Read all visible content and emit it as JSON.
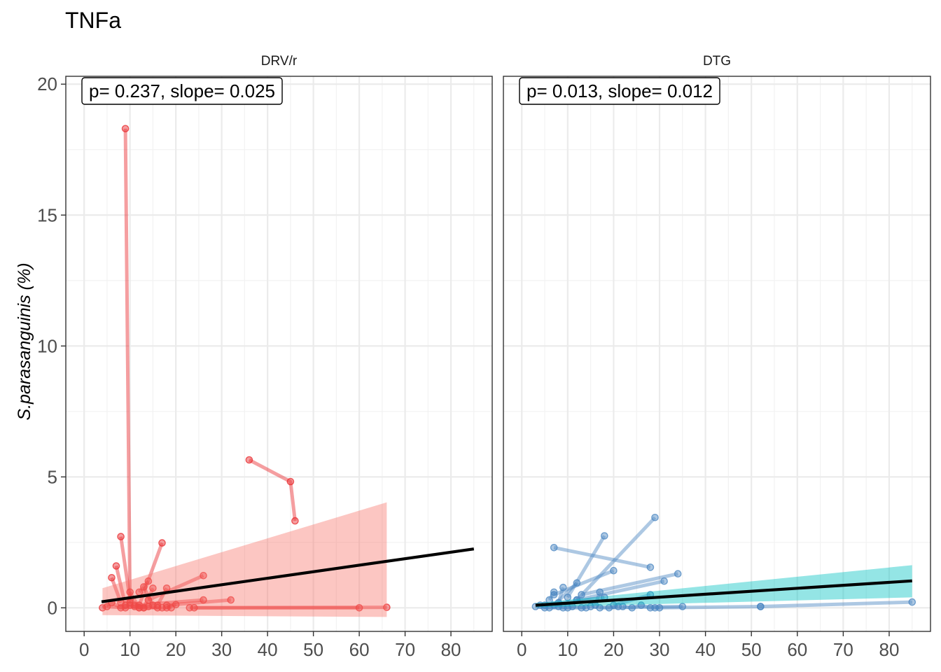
{
  "chart_data": {
    "type": "scatter",
    "title": "TNFa",
    "ylabel": "S.parasanguinis (%)",
    "xlabel": "",
    "ylim": [
      -0.9,
      20.3
    ],
    "xlim": [
      -4,
      89
    ],
    "y_ticks": [
      0,
      5,
      10,
      15,
      20
    ],
    "x_ticks": [
      0,
      10,
      20,
      30,
      40,
      50,
      60,
      70,
      80
    ],
    "grid": true,
    "panels": [
      {
        "name": "DRV/r",
        "annotation": "p= 0.237, slope= 0.025",
        "color": "#E8292C",
        "ribbon_color": "#F8766D",
        "fit": {
          "x": [
            3.8,
            85
          ],
          "y": [
            0.23,
            2.25
          ]
        },
        "ribbon": {
          "x": [
            4,
            66
          ],
          "upper": [
            0.75,
            4.03
          ],
          "lower": [
            -0.28,
            -0.35
          ]
        },
        "paths": [
          [
            [
              9,
              18.3
            ],
            [
              10,
              0.2
            ]
          ],
          [
            [
              36,
              5.65
            ],
            [
              45,
              4.82
            ],
            [
              46,
              3.32
            ]
          ],
          [
            [
              8,
              2.72
            ],
            [
              10,
              0.3
            ]
          ],
          [
            [
              17,
              2.48
            ],
            [
              12,
              0.1
            ]
          ],
          [
            [
              7,
              1.6
            ],
            [
              9,
              0.1
            ]
          ],
          [
            [
              6,
              1.15
            ],
            [
              8,
              0.2
            ]
          ],
          [
            [
              26,
              1.23
            ],
            [
              14,
              0.3
            ]
          ],
          [
            [
              14,
              1.02
            ],
            [
              12,
              0.6
            ]
          ],
          [
            [
              15,
              0.75
            ],
            [
              13,
              0.0
            ]
          ],
          [
            [
              18,
              0.75
            ],
            [
              16,
              0.1
            ]
          ],
          [
            [
              26,
              0.3
            ],
            [
              11,
              0.1
            ]
          ],
          [
            [
              32,
              0.3
            ],
            [
              18,
              0.1
            ]
          ],
          [
            [
              20,
              0.12
            ],
            [
              18,
              0.0
            ]
          ],
          [
            [
              66,
              0.02
            ],
            [
              23,
              0.0
            ]
          ],
          [
            [
              60,
              0.0
            ],
            [
              24,
              0.0
            ]
          ],
          [
            [
              10,
              0.6
            ],
            [
              12,
              0.0
            ]
          ],
          [
            [
              13,
              0.8
            ],
            [
              15,
              0.1
            ]
          ],
          [
            [
              4,
              0.0
            ],
            [
              6,
              0.2
            ],
            [
              8,
              0.0
            ],
            [
              10,
              0.1
            ],
            [
              12,
              0.0
            ],
            [
              14,
              0.05
            ],
            [
              16,
              0.0
            ]
          ],
          [
            [
              5,
              0.05
            ],
            [
              9,
              0.0
            ],
            [
              11,
              0.05
            ],
            [
              13,
              0.0
            ],
            [
              17,
              0.0
            ],
            [
              19,
              0.0
            ]
          ]
        ]
      },
      {
        "name": "DTG",
        "annotation": "p= 0.013, slope= 0.012",
        "color": "#4A86C0",
        "ribbon_color": "#00C0C0",
        "fit": {
          "x": [
            3,
            85
          ],
          "y": [
            0.1,
            1.03
          ]
        },
        "ribbon": {
          "x": [
            3,
            85
          ],
          "upper": [
            0.18,
            1.63
          ],
          "lower": [
            0.02,
            0.4
          ]
        },
        "paths": [
          [
            [
              29,
              3.45
            ],
            [
              12,
              0.3
            ]
          ],
          [
            [
              18,
              2.75
            ],
            [
              10,
              0.4
            ]
          ],
          [
            [
              7,
              2.3
            ],
            [
              28,
              1.55
            ]
          ],
          [
            [
              34,
              1.3
            ],
            [
              13,
              0.5
            ]
          ],
          [
            [
              20,
              1.42
            ],
            [
              7,
              0.5
            ]
          ],
          [
            [
              31,
              1.02
            ],
            [
              12,
              0.3
            ]
          ],
          [
            [
              12,
              0.95
            ],
            [
              7,
              0.1
            ]
          ],
          [
            [
              9,
              0.78
            ],
            [
              8,
              0.2
            ]
          ],
          [
            [
              17,
              0.6
            ],
            [
              16,
              0.1
            ]
          ],
          [
            [
              18,
              0.4
            ],
            [
              5,
              0.1
            ]
          ],
          [
            [
              7,
              0.6
            ],
            [
              6,
              0.3
            ]
          ],
          [
            [
              28,
              0.5
            ],
            [
              20,
              0.1
            ]
          ],
          [
            [
              85,
              0.22
            ],
            [
              52,
              0.05
            ]
          ],
          [
            [
              52,
              0.05
            ],
            [
              29,
              0.0
            ]
          ],
          [
            [
              35,
              0.05
            ],
            [
              17,
              0.0
            ]
          ],
          [
            [
              3,
              0.05
            ],
            [
              5,
              0.0
            ],
            [
              8,
              0.05
            ],
            [
              10,
              0.0
            ],
            [
              13,
              0.0
            ],
            [
              15,
              0.05
            ],
            [
              19,
              0.0
            ],
            [
              21,
              0.05
            ]
          ],
          [
            [
              22,
              0.05
            ],
            [
              24,
              0.0
            ],
            [
              26,
              0.1
            ],
            [
              28,
              0.0
            ],
            [
              30,
              0.0
            ]
          ],
          [
            [
              4,
              0.1
            ],
            [
              6,
              0.0
            ],
            [
              9,
              0.0
            ],
            [
              11,
              0.05
            ],
            [
              14,
              0.0
            ]
          ]
        ]
      }
    ]
  }
}
